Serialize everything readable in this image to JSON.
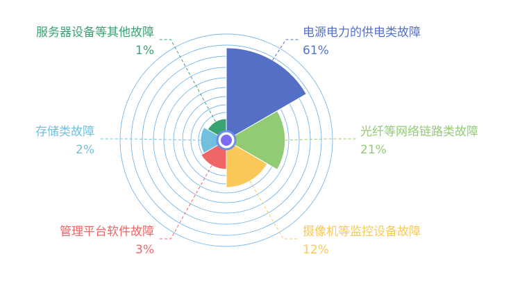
{
  "chart_data": {
    "type": "nightingale-rose",
    "slices": [
      {
        "name": "电源电力的供电类故障",
        "value": 61,
        "label": "61%",
        "color": "#5470c6"
      },
      {
        "name": "光纤等网络链路类故障",
        "value": 21,
        "label": "21%",
        "color": "#91cc75"
      },
      {
        "name": "摄像机等监控设备故障",
        "value": 12,
        "label": "12%",
        "color": "#fac858"
      },
      {
        "name": "管理平台软件故障",
        "value": 3,
        "label": "3%",
        "color": "#ee6666"
      },
      {
        "name": "存储类故障",
        "value": 2,
        "label": "2%",
        "color": "#73c0de"
      },
      {
        "name": "服务器设备等其他故障",
        "value": 1,
        "label": "1%",
        "color": "#3ba272"
      }
    ],
    "background_ring_color": "#6aaee8",
    "center_marker_color": "#7b6cf0"
  }
}
